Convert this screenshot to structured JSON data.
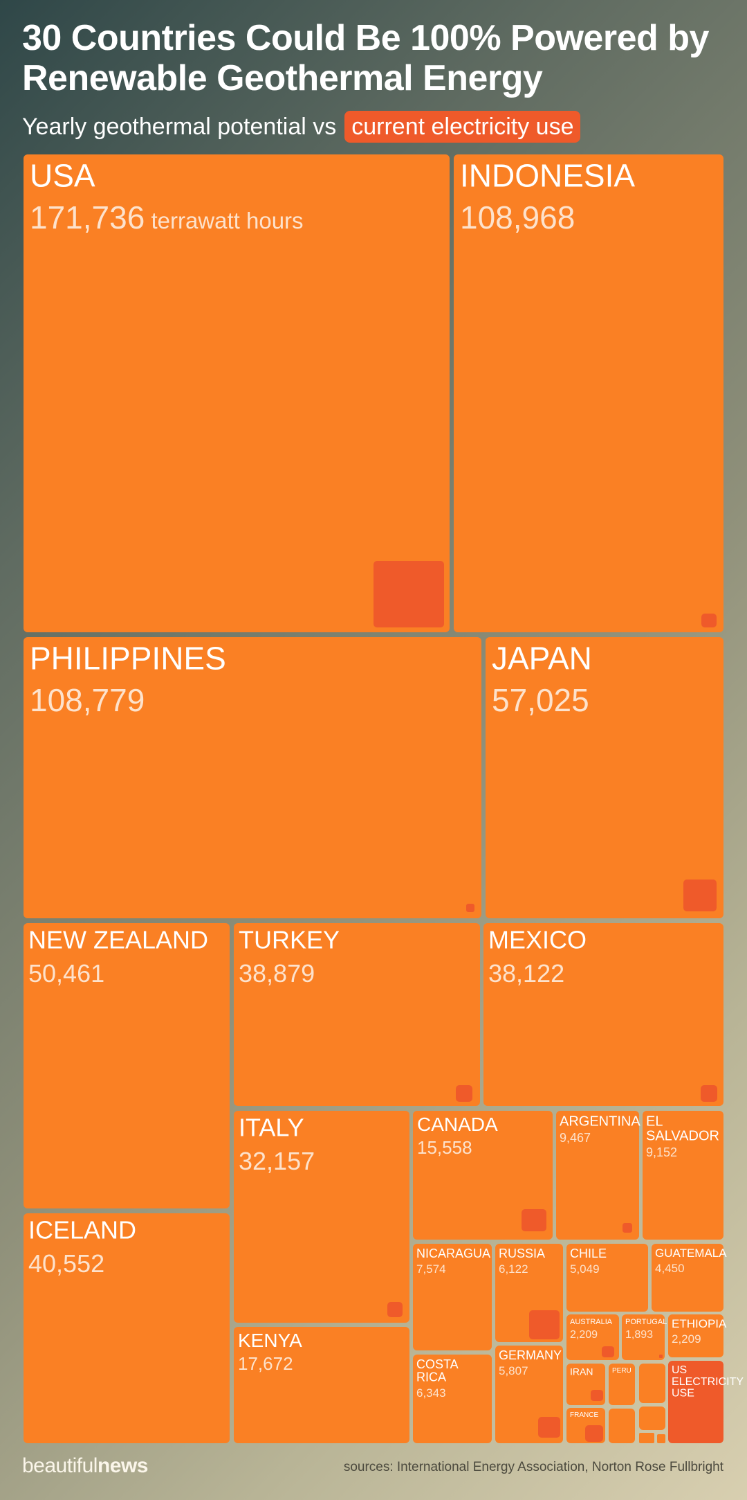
{
  "header": {
    "title": "30 Countries Could Be 100% Powered by Renewable Geothermal Energy",
    "subtitle": "Yearly geothermal potential vs",
    "subtitle_highlight": "current electricity use"
  },
  "footer": {
    "brand_light": "beautiful",
    "brand_bold": "news",
    "sources": "sources: International Energy Association, Norton Rose Fullbright"
  },
  "colors": {
    "potential": "#fa8024",
    "usage": "#ef5a2a",
    "label": "#ffffff",
    "value": "#fde2cc"
  },
  "chart_data": {
    "type": "treemap",
    "title": "30 Countries Could Be 100% Powered by Renewable Geothermal Energy",
    "subtitle": "Yearly geothermal potential vs current electricity use",
    "unit": "terrawatt hours",
    "series": [
      {
        "name": "Yearly geothermal potential"
      },
      {
        "name": "current electricity use"
      }
    ],
    "items": [
      {
        "country": "USA",
        "potential": 171736,
        "value_label": "171,736",
        "unit_label": "terrawatt hours"
      },
      {
        "country": "INDONESIA",
        "potential": 108968,
        "value_label": "108,968"
      },
      {
        "country": "PHILIPPINES",
        "potential": 108779,
        "value_label": "108,779"
      },
      {
        "country": "JAPAN",
        "potential": 57025,
        "value_label": "57,025"
      },
      {
        "country": "NEW ZEALAND",
        "potential": 50461,
        "value_label": "50,461"
      },
      {
        "country": "TURKEY",
        "potential": 38879,
        "value_label": "38,879"
      },
      {
        "country": "MEXICO",
        "potential": 38122,
        "value_label": "38,122"
      },
      {
        "country": "ITALY",
        "potential": 32157,
        "value_label": "32,157"
      },
      {
        "country": "CANADA",
        "potential": 15558,
        "value_label": "15,558"
      },
      {
        "country": "ARGENTINA",
        "potential": 9467,
        "value_label": "9,467"
      },
      {
        "country": "EL SALVADOR",
        "potential": 9152,
        "value_label": "9,152"
      },
      {
        "country": "ICELAND",
        "potential": 40552,
        "value_label": "40,552"
      },
      {
        "country": "KENYA",
        "potential": 17672,
        "value_label": "17,672"
      },
      {
        "country": "NICARAGUA",
        "potential": 7574,
        "value_label": "7,574"
      },
      {
        "country": "RUSSIA",
        "potential": 6122,
        "value_label": "6,122"
      },
      {
        "country": "CHILE",
        "potential": 5049,
        "value_label": "5,049"
      },
      {
        "country": "GUATEMALA",
        "potential": 4450,
        "value_label": "4,450"
      },
      {
        "country": "AUSTRALIA",
        "potential": 2209,
        "value_label": "2,209"
      },
      {
        "country": "PORTUGAL",
        "potential": 1893,
        "value_label": "1,893"
      },
      {
        "country": "ETHIOPIA",
        "potential": 2209,
        "value_label": "2,209"
      },
      {
        "country": "COSTA RICA",
        "potential": 6343,
        "value_label": "6,343"
      },
      {
        "country": "GERMANY",
        "potential": 5807,
        "value_label": "5,807"
      },
      {
        "country": "IRAN",
        "potential": null,
        "value_label": ""
      },
      {
        "country": "PERU",
        "potential": null,
        "value_label": ""
      },
      {
        "country": "FRANCE",
        "potential": null,
        "value_label": ""
      },
      {
        "country": "US ELECTRICITY USE",
        "potential": null,
        "value_label": "",
        "highlight": true
      },
      {
        "country": "",
        "potential": null,
        "value_label": ""
      },
      {
        "country": "",
        "potential": null,
        "value_label": ""
      },
      {
        "country": "",
        "potential": null,
        "value_label": ""
      },
      {
        "country": "",
        "potential": null,
        "value_label": ""
      },
      {
        "country": "",
        "potential": null,
        "value_label": ""
      },
      {
        "country": "",
        "potential": null,
        "value_label": ""
      }
    ]
  }
}
